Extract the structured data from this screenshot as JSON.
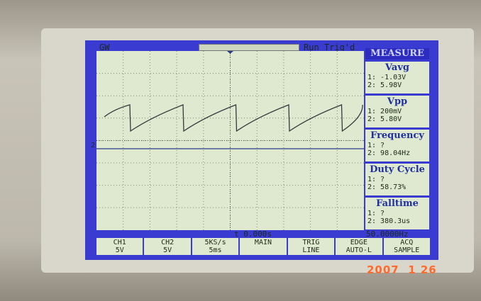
{
  "header": {
    "brand": "GW",
    "status": "Run Trig'd"
  },
  "measure": {
    "title": "MEASURE",
    "items": [
      {
        "name": "Vavg",
        "ch1": "1: -1.03V",
        "ch2": "2: 5.98V"
      },
      {
        "name": "Vpp",
        "ch1": "1: 200mV",
        "ch2": "2: 5.80V"
      },
      {
        "name": "Frequency",
        "ch1": "1:  ?",
        "ch2": "2: 98.04Hz"
      },
      {
        "name": "Duty Cycle",
        "ch1": "1:  ?",
        "ch2": "2: 58.73%"
      },
      {
        "name": "Falltime",
        "ch1": "1:  ?",
        "ch2": "2: 380.3us"
      }
    ]
  },
  "timebase": "t 0.000s",
  "trigger_freq": "50.0000Hz",
  "channel_marker": "2",
  "menu": [
    {
      "top": "CH1",
      "bottom": "5V"
    },
    {
      "top": "CH2",
      "bottom": "5V"
    },
    {
      "top": "5KS/s",
      "bottom": "5ms"
    },
    {
      "top": "MAIN"
    },
    {
      "top": "TRIG",
      "bottom": "LINE"
    },
    {
      "top": "EDGE",
      "bottom": "AUTO-L"
    },
    {
      "top": "ACQ",
      "bottom": "SAMPLE"
    }
  ],
  "date_stamp": "2007  1 26"
}
